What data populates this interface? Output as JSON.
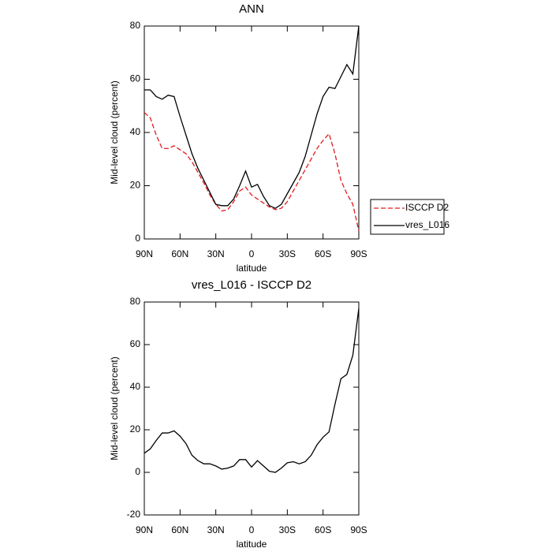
{
  "chart_data": [
    {
      "type": "line",
      "title": "ANN",
      "xlabel": "latitude",
      "ylabel": "Mid-level cloud (percent)",
      "x": [
        90,
        85,
        80,
        75,
        70,
        65,
        60,
        55,
        50,
        45,
        40,
        35,
        30,
        25,
        20,
        15,
        10,
        5,
        0,
        -5,
        -10,
        -15,
        -20,
        -25,
        -30,
        -35,
        -40,
        -45,
        -50,
        -55,
        -60,
        -65,
        -70,
        -75,
        -80,
        -85,
        -90
      ],
      "series": [
        {
          "name": "ISCCP D2",
          "color": "#e41a1c",
          "style": "dashed",
          "values": [
            47.5,
            45.5,
            39,
            34,
            34,
            35,
            33.5,
            32,
            29,
            25,
            21,
            16.5,
            13,
            10.5,
            11,
            14,
            18,
            19.5,
            16.5,
            15,
            13.5,
            12,
            11,
            11.5,
            14,
            18,
            22,
            26,
            30,
            34,
            37,
            39.5,
            32,
            22,
            17,
            13,
            3
          ]
        },
        {
          "name": "vres_L016",
          "color": "#000000",
          "style": "solid",
          "values": [
            56,
            56,
            53.5,
            52.5,
            54,
            53.5,
            46,
            39,
            32,
            26.5,
            22,
            17.5,
            13,
            12.5,
            12.5,
            15,
            20,
            25.5,
            19.5,
            20.5,
            16,
            12.5,
            11.5,
            13,
            17,
            21,
            25,
            31,
            39,
            47,
            53.5,
            57,
            56.5,
            61,
            65.5,
            62,
            80
          ]
        }
      ],
      "xlim": [
        90,
        -90
      ],
      "ylim": [
        0,
        80
      ],
      "xticks": [
        {
          "value": 90,
          "label": "90N"
        },
        {
          "value": 60,
          "label": "60N"
        },
        {
          "value": 30,
          "label": "30N"
        },
        0,
        {
          "value": -30,
          "label": "30S"
        },
        {
          "value": -60,
          "label": "60S"
        },
        {
          "value": -90,
          "label": "90S"
        }
      ],
      "yticks": [
        0,
        20,
        40,
        60,
        80
      ],
      "legend": "right"
    },
    {
      "type": "line",
      "title": "vres_L016 - ISCCP D2",
      "xlabel": "latitude",
      "ylabel": "Mid-level cloud (percent)",
      "x": [
        90,
        85,
        80,
        75,
        70,
        65,
        60,
        55,
        50,
        45,
        40,
        35,
        30,
        25,
        20,
        15,
        10,
        5,
        0,
        -5,
        -10,
        -15,
        -20,
        -25,
        -30,
        -35,
        -40,
        -45,
        -50,
        -55,
        -60,
        -65,
        -70,
        -75,
        -80,
        -85,
        -90
      ],
      "series": [
        {
          "color": "#000000",
          "style": "solid",
          "values": [
            9,
            11,
            15,
            18.5,
            18.5,
            19.5,
            17,
            13.5,
            8,
            5.5,
            4,
            4,
            3,
            1.5,
            2,
            3,
            6,
            6,
            2.5,
            5.5,
            3,
            0.5,
            0,
            2,
            4.5,
            5,
            4,
            5,
            8,
            13,
            16.5,
            19,
            32,
            44,
            46,
            55,
            77
          ]
        }
      ],
      "xlim": [
        90,
        -90
      ],
      "ylim": [
        -20,
        80
      ],
      "xticks": [
        {
          "value": 90,
          "label": "90N"
        },
        {
          "value": 60,
          "label": "60N"
        },
        {
          "value": 30,
          "label": "30N"
        },
        0,
        {
          "value": -30,
          "label": "30S"
        },
        {
          "value": -60,
          "label": "60S"
        },
        {
          "value": -90,
          "label": "90S"
        }
      ],
      "yticks": [
        -20,
        0,
        20,
        40,
        60,
        80
      ]
    }
  ]
}
